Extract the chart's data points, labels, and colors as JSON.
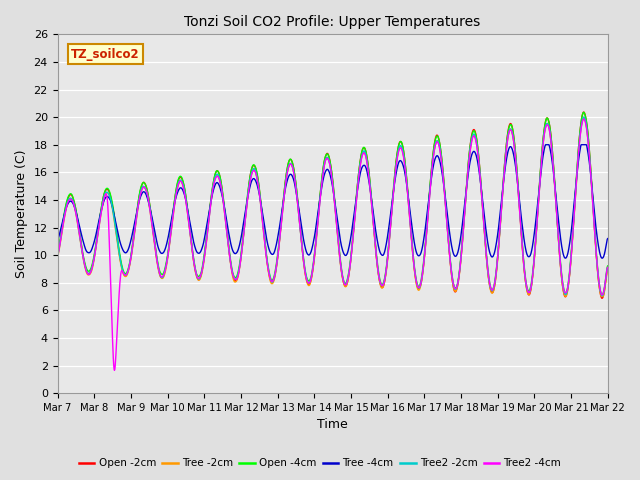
{
  "title": "Tonzi Soil CO2 Profile: Upper Temperatures",
  "xlabel": "Time",
  "ylabel": "Soil Temperature (C)",
  "ylim": [
    0,
    26
  ],
  "background_color": "#e0e0e0",
  "plot_bg_color": "#e8e8e8",
  "legend_box_label": "TZ_soilco2",
  "legend_box_color": "#ffffcc",
  "legend_box_border": "#cc8800",
  "series_colors": {
    "Open -2cm": "#ff0000",
    "Tree -2cm": "#ff9900",
    "Open -4cm": "#00ff00",
    "Tree -4cm": "#0000cc",
    "Tree2 -2cm": "#00cccc",
    "Tree2 -4cm": "#ff00ff"
  },
  "xtick_labels": [
    "Mar 7",
    "Mar 8",
    "Mar 9",
    "Mar 10",
    "Mar 11",
    "Mar 12",
    "Mar 13",
    "Mar 14",
    "Mar 15",
    "Mar 16",
    "Mar 17",
    "Mar 18",
    "Mar 19",
    "Mar 20",
    "Mar 21",
    "Mar 22"
  ],
  "ytick_values": [
    0,
    2,
    4,
    6,
    8,
    10,
    12,
    14,
    16,
    18,
    20,
    22,
    24,
    26
  ],
  "days": 15,
  "n_points": 1500
}
